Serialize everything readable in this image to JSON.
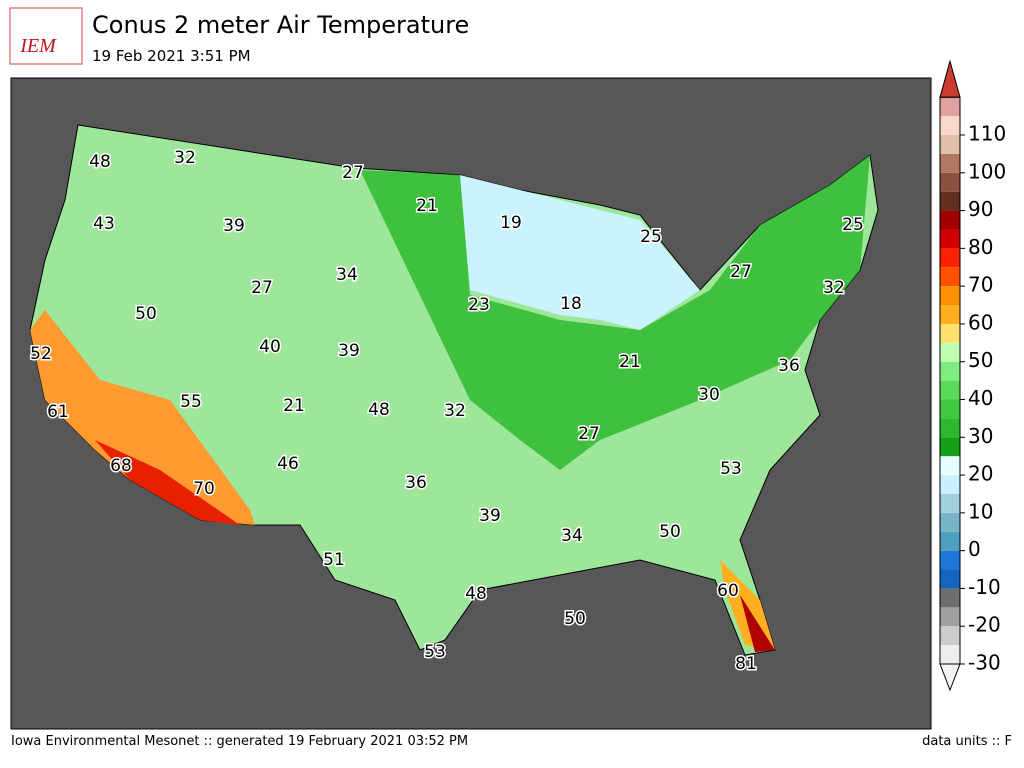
{
  "header": {
    "logo": "IEM",
    "title": "Conus 2 meter Air Temperature",
    "subtitle": "19 Feb 2021 3:51 PM"
  },
  "map_labels": [
    48,
    32,
    27,
    21,
    43,
    19,
    39,
    25,
    25,
    34,
    27,
    27,
    50,
    23,
    18,
    32,
    52,
    40,
    39,
    21,
    36,
    61,
    55,
    32,
    21,
    48,
    30,
    68,
    46,
    27,
    53,
    70,
    36,
    39,
    50,
    34,
    51,
    48,
    60,
    50,
    53,
    81
  ],
  "colorbar": {
    "ticks": [
      -30,
      -20,
      -10,
      0,
      10,
      20,
      30,
      40,
      50,
      60,
      70,
      80,
      90,
      100,
      110
    ],
    "colors": [
      "#eeeeee",
      "#cccccc",
      "#a0a0a0",
      "#6e6e6e",
      "#1565c0",
      "#1e78d8",
      "#4fa0c0",
      "#78b4c8",
      "#a0d0dc",
      "#c8f0ff",
      "#e8ffff",
      "#14a014",
      "#2eb82e",
      "#40c840",
      "#5adc5a",
      "#80ec80",
      "#c0ffb0",
      "#ffe070",
      "#ffb020",
      "#ff9000",
      "#ff5000",
      "#ff2000",
      "#d00000",
      "#a00000",
      "#603020",
      "#8a5040",
      "#b07860",
      "#e0c0a8",
      "#f8d8c8",
      "#e0a0a0"
    ]
  },
  "footer": {
    "left": "Iowa Environmental Mesonet :: generated 19 February 2021 03:52 PM",
    "right": "data units :: F"
  }
}
